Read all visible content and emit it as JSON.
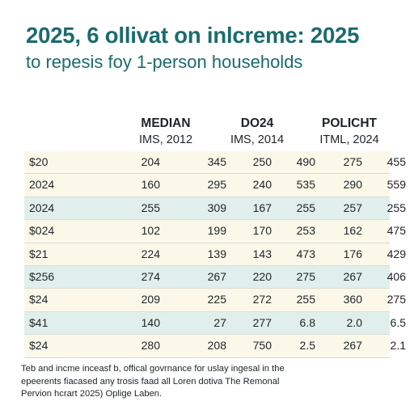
{
  "chart_data": {
    "type": "table",
    "title": "2025, 6 ollivat on inlcreme: 2025",
    "subtitle": "to repesis foy 1-person households",
    "column_groups": [
      {
        "heading": "MEDIAN",
        "subheading": "IMS, 2012"
      },
      {
        "heading": "DO24",
        "subheading": "IMS, 2014"
      },
      {
        "heading": "POLICHT",
        "subheading": "ITML, 2024"
      }
    ],
    "rows": [
      {
        "label": "$20",
        "values": [
          "204",
          "345",
          "250",
          "490",
          "275",
          "455"
        ]
      },
      {
        "label": "2024",
        "values": [
          "160",
          "295",
          "240",
          "535",
          "290",
          "559"
        ]
      },
      {
        "label": "2024",
        "values": [
          "255",
          "309",
          "167",
          "255",
          "257",
          "255"
        ]
      },
      {
        "label": "$024",
        "values": [
          "102",
          "199",
          "170",
          "253",
          "162",
          "475"
        ]
      },
      {
        "label": "$21",
        "values": [
          "224",
          "139",
          "143",
          "473",
          "176",
          "429"
        ]
      },
      {
        "label": "$256",
        "values": [
          "274",
          "267",
          "220",
          "275",
          "267",
          "406"
        ]
      },
      {
        "label": "$24",
        "values": [
          "209",
          "225",
          "272",
          "255",
          "360",
          "275"
        ]
      },
      {
        "label": "$41",
        "values": [
          "140",
          "27",
          "277",
          "6.8",
          "2.0",
          "6.5"
        ]
      },
      {
        "label": "$24",
        "values": [
          "280",
          "208",
          "750",
          "2.5",
          "267",
          "2.1"
        ]
      }
    ]
  },
  "footnote": {
    "line1": "Teb and incme inceasf b, offical govrnance for uslay ingesal in the",
    "line2": "epeerents fiacased any trosis faad all Loren dotiva The Remonal",
    "line3": "Pervion hcrart 2025) Oplige Laben."
  },
  "colors": {
    "title": "#1b6b6e",
    "row_cream": "#fbf8ea",
    "row_teal": "#e1efec",
    "rule": "#d8dcd4",
    "text": "#1d2326"
  }
}
